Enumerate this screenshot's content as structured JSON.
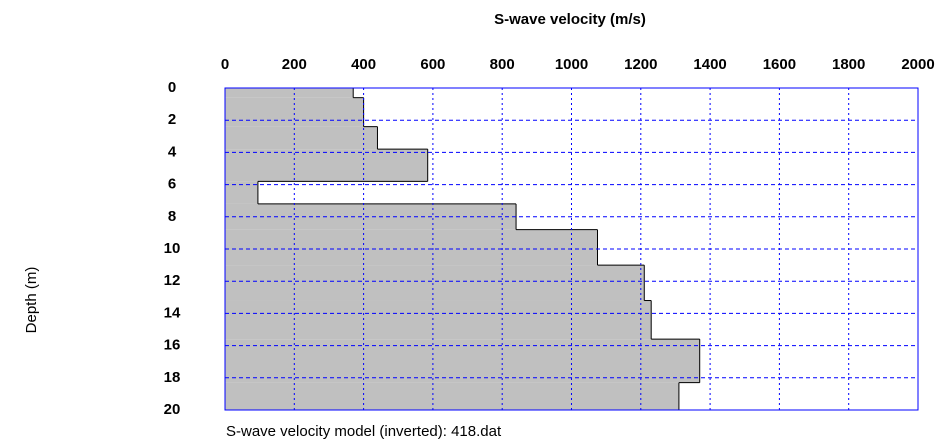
{
  "chart_data": {
    "type": "step",
    "title": "S-wave velocity (m/s)",
    "y_label": "Depth (m)",
    "caption": "S-wave velocity model (inverted): 418.dat",
    "depths": [
      0,
      0.6,
      2.4,
      3.8,
      5.8,
      7.2,
      8.8,
      11,
      13.2,
      15.6,
      18.3,
      20
    ],
    "values": [
      370,
      400,
      440,
      585,
      95,
      840,
      1075,
      1210,
      1230,
      1370,
      1310
    ],
    "color": "#c0c0c0",
    "xlim": [
      0,
      2000
    ],
    "xticks": [
      0,
      200,
      400,
      600,
      800,
      1000,
      1200,
      1400,
      1600,
      1800,
      2000
    ],
    "ylim": [
      0,
      20
    ],
    "yticks": [
      0,
      2,
      4,
      6,
      8,
      10,
      12,
      14,
      16,
      18,
      20
    ],
    "grid": true
  }
}
